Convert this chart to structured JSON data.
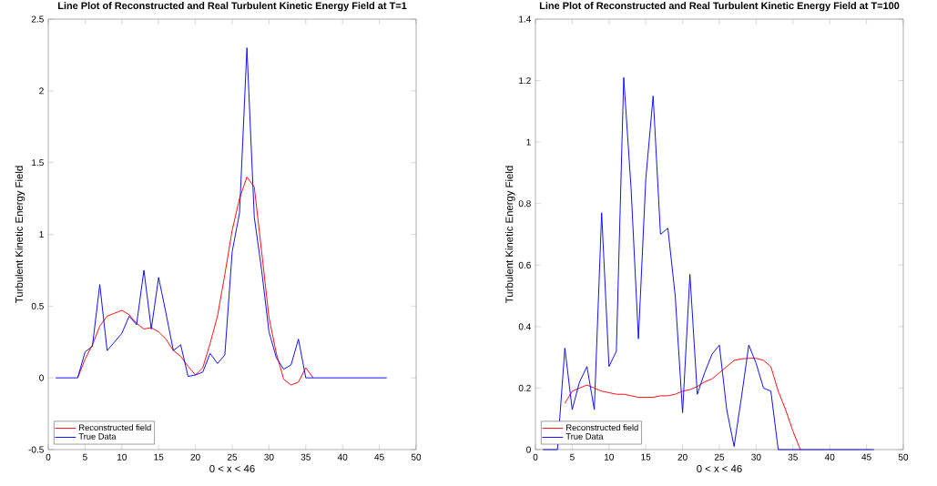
{
  "chart_data": [
    {
      "type": "line",
      "title": "Line Plot of Reconstructed and Real Turbulent Kinetic Energy Field at T=1",
      "xlabel": "0 < x < 46",
      "ylabel": "Turbulent Kinetic Energy Field",
      "xlim": [
        0,
        50
      ],
      "ylim": [
        -0.5,
        2.5
      ],
      "xticks": [
        0,
        5,
        10,
        15,
        20,
        25,
        30,
        35,
        40,
        45,
        50
      ],
      "yticks": [
        -0.5,
        0,
        0.5,
        1,
        1.5,
        2,
        2.5
      ],
      "legend": "bottom left",
      "marker": "none",
      "line_style": "solid",
      "series": [
        {
          "name": "Reconstructed field",
          "color": "#ff0000",
          "x": [
            4,
            5,
            6,
            7,
            8,
            9,
            10,
            11,
            12,
            13,
            14,
            15,
            16,
            17,
            18,
            19,
            20,
            21,
            22,
            23,
            24,
            25,
            26,
            27,
            28,
            29,
            30,
            31,
            32,
            33,
            34,
            35,
            36
          ],
          "values": [
            0,
            0.13,
            0.23,
            0.36,
            0.43,
            0.45,
            0.47,
            0.44,
            0.38,
            0.34,
            0.35,
            0.32,
            0.27,
            0.19,
            0.15,
            0.08,
            0.02,
            0.07,
            0.24,
            0.43,
            0.72,
            1.03,
            1.25,
            1.4,
            1.33,
            0.88,
            0.42,
            0.17,
            -0.01,
            -0.05,
            -0.03,
            0.07,
            0
          ]
        },
        {
          "name": "True Data",
          "color": "#0000ff",
          "x": [
            1,
            2,
            3,
            4,
            5,
            6,
            7,
            8,
            9,
            10,
            11,
            12,
            13,
            14,
            15,
            16,
            17,
            18,
            19,
            20,
            21,
            22,
            23,
            24,
            25,
            26,
            27,
            28,
            29,
            30,
            31,
            32,
            33,
            34,
            35,
            36,
            37,
            38,
            39,
            40,
            41,
            42,
            43,
            44,
            45,
            46
          ],
          "values": [
            0,
            0,
            0,
            0,
            0.18,
            0.22,
            0.65,
            0.19,
            0.25,
            0.31,
            0.43,
            0.37,
            0.75,
            0.34,
            0.7,
            0.45,
            0.19,
            0.23,
            0.01,
            0.02,
            0.04,
            0.17,
            0.1,
            0.16,
            0.88,
            1.15,
            2.3,
            1.12,
            0.75,
            0.32,
            0.14,
            0.06,
            0.09,
            0.27,
            0,
            0,
            0,
            0,
            0,
            0,
            0,
            0,
            0,
            0,
            0,
            0
          ]
        }
      ]
    },
    {
      "type": "line",
      "title": "Line Plot of Reconstructed and Real Turbulent Kinetic Energy Field at T=100",
      "xlabel": "0 < x < 46",
      "ylabel": "Turbulent Kinetic Energy Field",
      "xlim": [
        0,
        50
      ],
      "ylim": [
        0,
        1.4
      ],
      "xticks": [
        0,
        5,
        10,
        15,
        20,
        25,
        30,
        35,
        40,
        45,
        50
      ],
      "yticks": [
        0,
        0.2,
        0.4,
        0.6,
        0.8,
        1,
        1.2,
        1.4
      ],
      "legend": "bottom left",
      "marker": "none",
      "line_style": "solid",
      "series": [
        {
          "name": "Reconstructed field",
          "color": "#ff0000",
          "x": [
            4,
            5,
            6,
            7,
            8,
            9,
            10,
            11,
            12,
            13,
            14,
            15,
            16,
            17,
            18,
            19,
            20,
            21,
            22,
            23,
            24,
            25,
            26,
            27,
            28,
            29,
            30,
            31,
            32,
            33,
            34,
            35,
            36
          ],
          "values": [
            0.15,
            0.19,
            0.2,
            0.21,
            0.2,
            0.19,
            0.185,
            0.18,
            0.18,
            0.175,
            0.17,
            0.17,
            0.17,
            0.175,
            0.175,
            0.18,
            0.19,
            0.195,
            0.205,
            0.22,
            0.23,
            0.25,
            0.27,
            0.29,
            0.295,
            0.297,
            0.297,
            0.29,
            0.27,
            0.19,
            0.13,
            0.06,
            0
          ]
        },
        {
          "name": "True Data",
          "color": "#0000ff",
          "x": [
            1,
            2,
            3,
            4,
            5,
            6,
            7,
            8,
            9,
            10,
            11,
            12,
            13,
            14,
            15,
            16,
            17,
            18,
            19,
            20,
            21,
            22,
            23,
            24,
            25,
            26,
            27,
            28,
            29,
            30,
            31,
            32,
            33,
            34,
            35,
            36,
            37,
            38,
            39,
            40,
            41,
            42,
            43,
            44,
            45,
            46
          ],
          "values": [
            0,
            0,
            0,
            0.33,
            0.13,
            0.22,
            0.27,
            0.13,
            0.77,
            0.27,
            0.32,
            1.21,
            0.85,
            0.36,
            0.88,
            1.15,
            0.7,
            0.72,
            0.5,
            0.12,
            0.57,
            0.18,
            0.25,
            0.31,
            0.34,
            0.13,
            0.01,
            0.17,
            0.34,
            0.28,
            0.2,
            0.19,
            0,
            0,
            0,
            0,
            0,
            0,
            0,
            0,
            0,
            0,
            0,
            0,
            0,
            0
          ]
        }
      ]
    }
  ]
}
